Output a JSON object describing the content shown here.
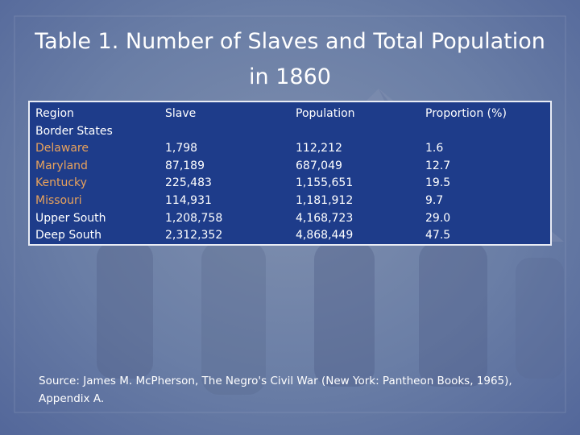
{
  "title": "Table 1. Number of Slaves and Total Population in 1860",
  "table": {
    "headers": {
      "region": "Region",
      "slave": "Slave",
      "population": "Population",
      "proportion": "Proportion (%)"
    },
    "rows": [
      {
        "region": "Border States",
        "is_state": false,
        "slave": "",
        "population": "",
        "proportion": ""
      },
      {
        "region": "Delaware",
        "is_state": true,
        "slave": "1,798",
        "population": "112,212",
        "proportion": "1.6"
      },
      {
        "region": "Maryland",
        "is_state": true,
        "slave": "87,189",
        "population": "687,049",
        "proportion": "12.7"
      },
      {
        "region": "Kentucky",
        "is_state": true,
        "slave": "225,483",
        "population": "1,155,651",
        "proportion": "19.5"
      },
      {
        "region": "Missouri",
        "is_state": true,
        "slave": "114,931",
        "population": "1,181,912",
        "proportion": "9.7"
      },
      {
        "region": "Upper South",
        "is_state": false,
        "slave": "1,208,758",
        "population": "4,168,723",
        "proportion": "29.0"
      },
      {
        "region": "Deep South",
        "is_state": false,
        "slave": "2,312,352",
        "population": "4,868,449",
        "proportion": "47.5"
      }
    ]
  },
  "source": "Source: James M. McPherson, The Negro's Civil War (New York: Pantheon Books, 1965), Appendix A.",
  "colors": {
    "table_background": "#1e3c8a",
    "state_text": "#e8a25c",
    "text": "#ffffff",
    "slide_background": "#6a7ea6"
  }
}
